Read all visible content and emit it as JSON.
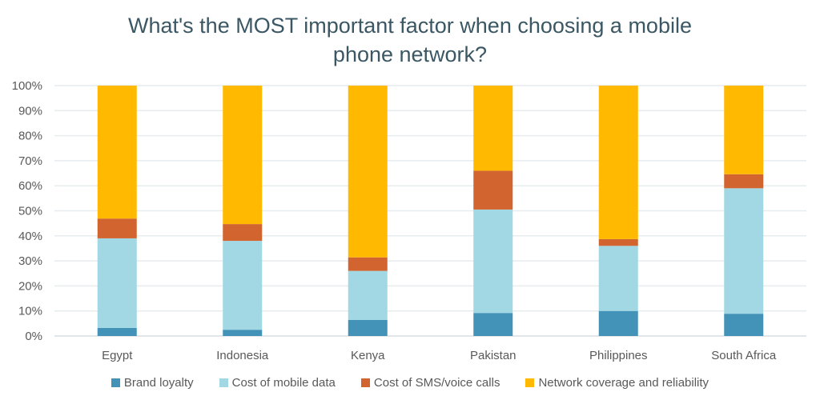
{
  "chart_data": {
    "type": "bar",
    "stacked": true,
    "title_lines": [
      "What's the MOST important factor when choosing a mobile",
      "phone network?"
    ],
    "title": "What's the MOST important factor when choosing a mobile phone network?",
    "xlabel": "",
    "ylabel": "",
    "ylim": [
      0,
      100
    ],
    "yticks": [
      "0%",
      "10%",
      "20%",
      "30%",
      "40%",
      "50%",
      "60%",
      "70%",
      "80%",
      "90%",
      "100%"
    ],
    "grid": true,
    "legend": "bottom",
    "categories": [
      "Egypt",
      "Indonesia",
      "Kenya",
      "Pakistan",
      "Philippines",
      "South Africa"
    ],
    "series": [
      {
        "name": "Brand loyalty",
        "color": "#4393b9",
        "values": [
          3.2,
          2.5,
          6.4,
          9.2,
          10.0,
          8.9
        ]
      },
      {
        "name": "Cost of mobile data",
        "color": "#a2d7e4",
        "values": [
          35.8,
          35.5,
          19.6,
          41.3,
          26.0,
          50.1
        ]
      },
      {
        "name": "Cost of SMS/voice calls",
        "color": "#d2652f",
        "values": [
          7.9,
          6.7,
          5.4,
          15.5,
          2.7,
          5.6
        ]
      },
      {
        "name": "Network coverage and reliability",
        "color": "#ffb900",
        "values": [
          53.1,
          55.3,
          68.6,
          34.0,
          61.3,
          35.4
        ]
      }
    ]
  }
}
